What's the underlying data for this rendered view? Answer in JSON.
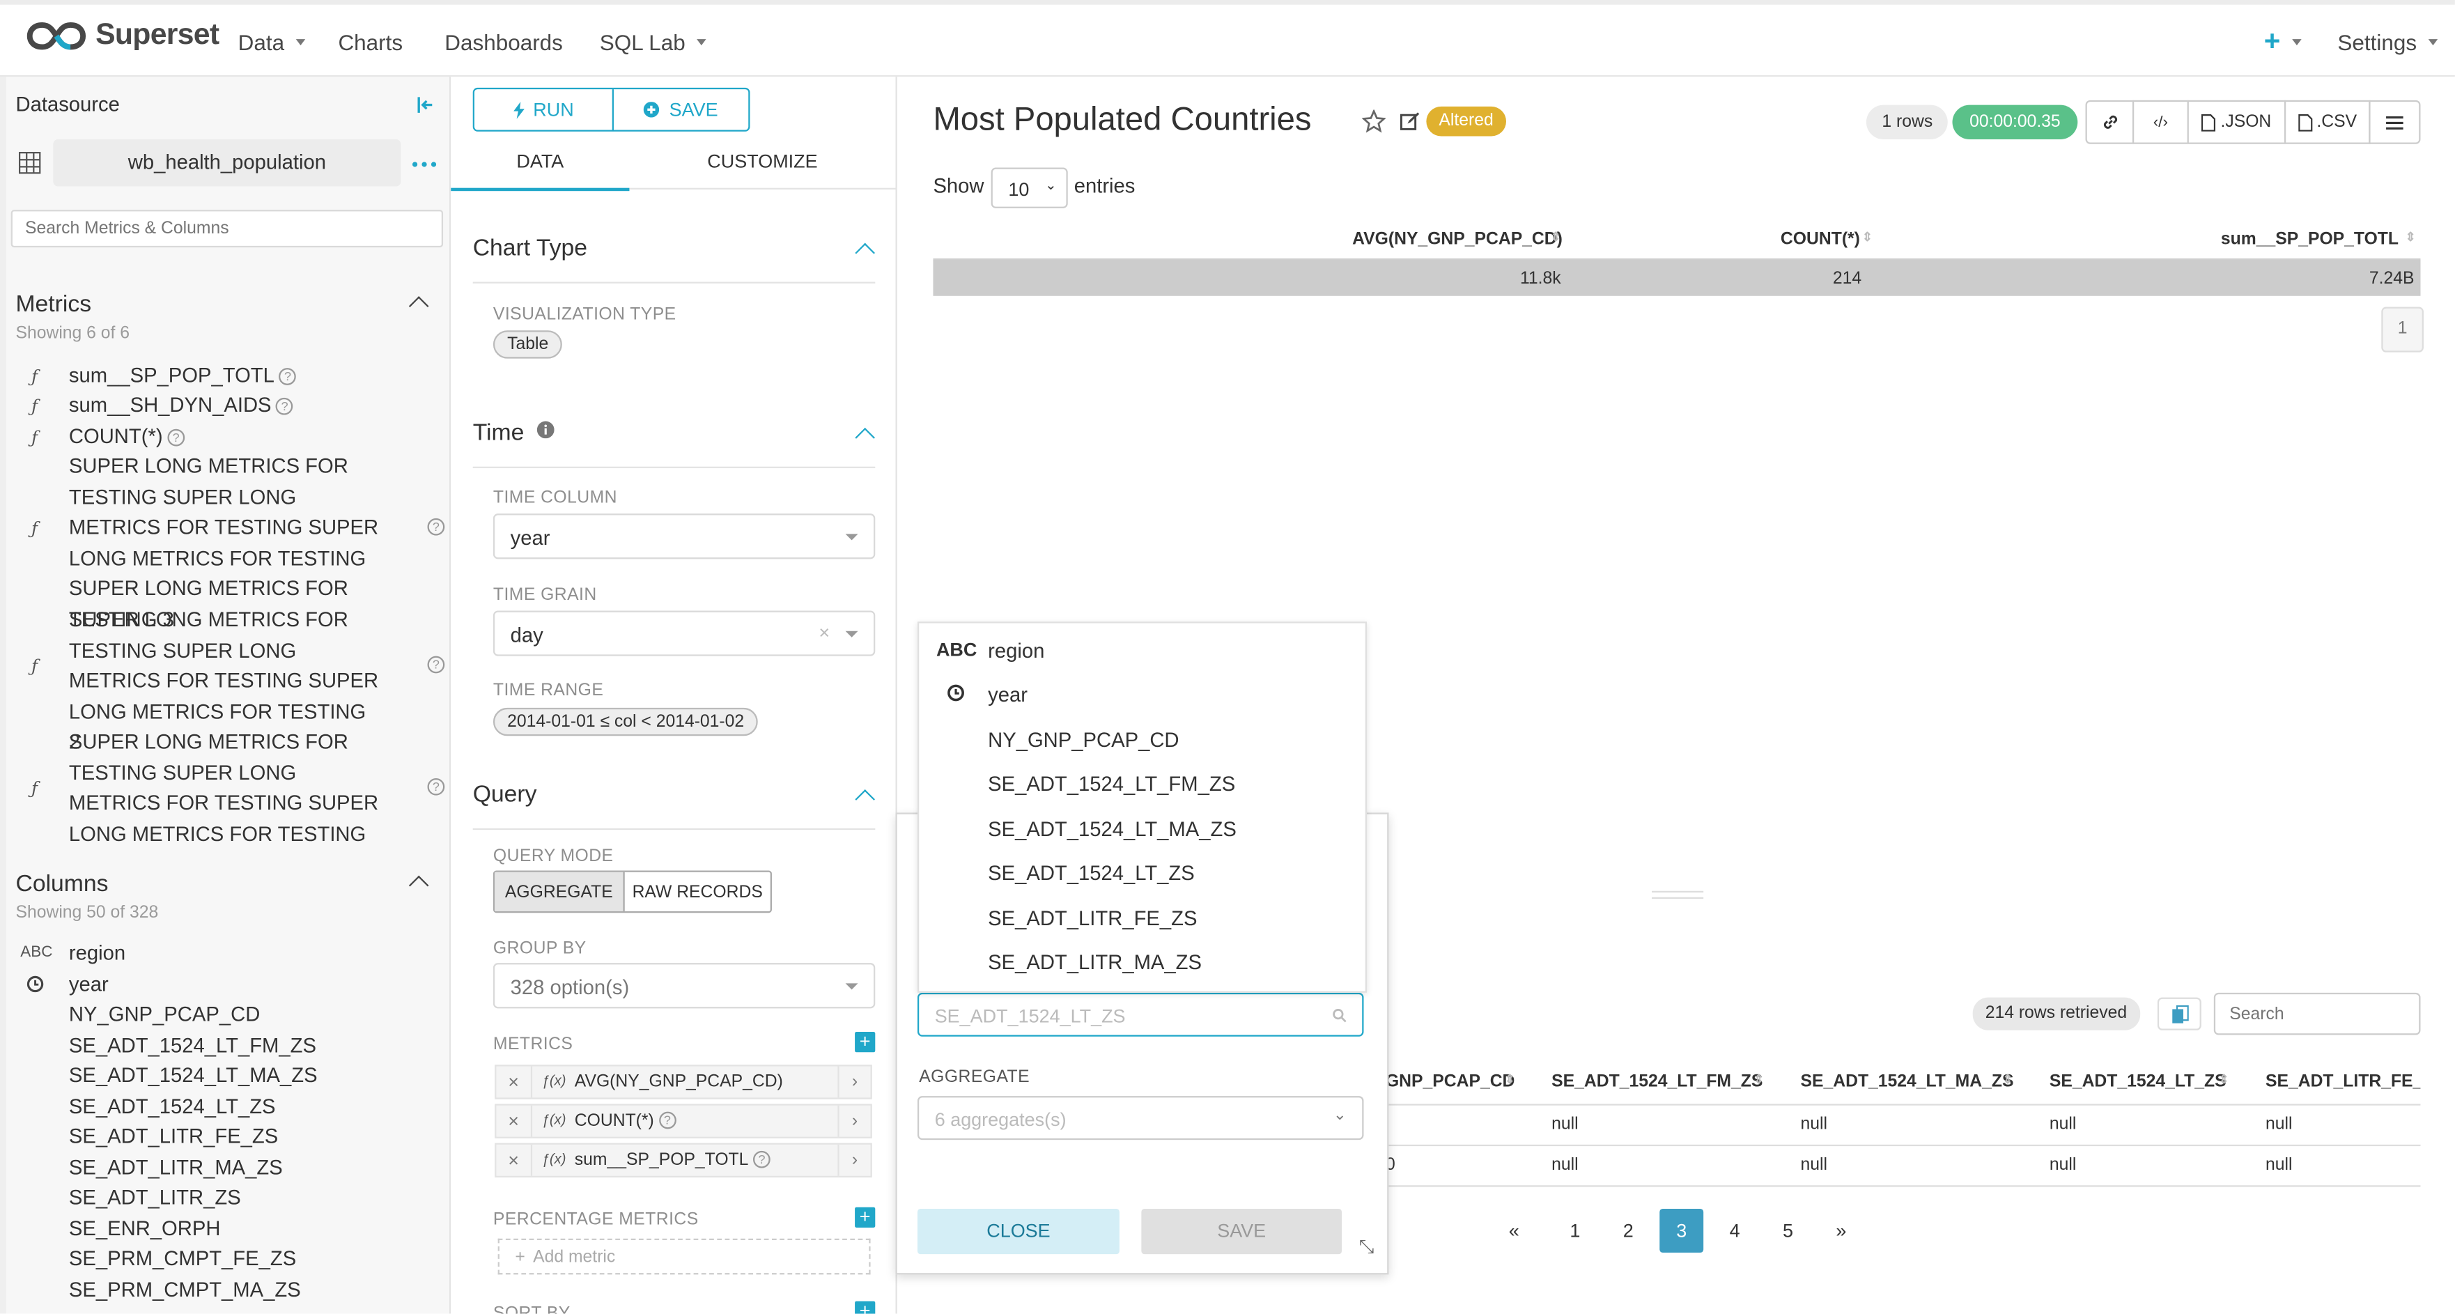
{
  "brand": {
    "name": "Superset"
  },
  "nav": {
    "items": [
      {
        "label": "Data",
        "dropdown": true
      },
      {
        "label": "Charts",
        "dropdown": false
      },
      {
        "label": "Dashboards",
        "dropdown": false
      },
      {
        "label": "SQL Lab",
        "dropdown": true
      }
    ],
    "plus": "+",
    "settings": "Settings"
  },
  "datasource": {
    "title": "Datasource",
    "name": "wb_health_population",
    "search_placeholder": "Search Metrics & Columns",
    "metrics_title": "Metrics",
    "metrics_count": "Showing 6 of 6",
    "metrics": [
      {
        "name": "sum__SP_POP_TOTL",
        "help": true
      },
      {
        "name": "sum__SH_DYN_AIDS",
        "help": true
      },
      {
        "name": "COUNT(*)",
        "help": true
      },
      {
        "name": "SUPER LONG METRICS FOR TESTING SUPER LONG METRICS FOR TESTING SUPER LONG METRICS FOR TESTING SUPER LONG METRICS FOR TESTING 3",
        "help": true
      },
      {
        "name": "SUPER LONG METRICS FOR TESTING SUPER LONG METRICS FOR TESTING SUPER LONG METRICS FOR TESTING 2",
        "help": true
      },
      {
        "name": "SUPER LONG METRICS FOR TESTING SUPER LONG METRICS FOR TESTING SUPER LONG METRICS FOR TESTING",
        "help": true
      }
    ],
    "columns_title": "Columns",
    "columns_count": "Showing 50 of 328",
    "columns": [
      {
        "type": "ABC",
        "name": "region"
      },
      {
        "type": "time",
        "name": "year"
      },
      {
        "type": "",
        "name": "NY_GNP_PCAP_CD"
      },
      {
        "type": "",
        "name": "SE_ADT_1524_LT_FM_ZS"
      },
      {
        "type": "",
        "name": "SE_ADT_1524_LT_MA_ZS"
      },
      {
        "type": "",
        "name": "SE_ADT_1524_LT_ZS"
      },
      {
        "type": "",
        "name": "SE_ADT_LITR_FE_ZS"
      },
      {
        "type": "",
        "name": "SE_ADT_LITR_MA_ZS"
      },
      {
        "type": "",
        "name": "SE_ADT_LITR_ZS"
      },
      {
        "type": "",
        "name": "SE_ENR_ORPH"
      },
      {
        "type": "",
        "name": "SE_PRM_CMPT_FE_ZS"
      },
      {
        "type": "",
        "name": "SE_PRM_CMPT_MA_ZS"
      }
    ]
  },
  "controls": {
    "run": "RUN",
    "save": "SAVE",
    "tabs": [
      {
        "label": "DATA",
        "active": true
      },
      {
        "label": "CUSTOMIZE",
        "active": false
      }
    ],
    "chart_type": {
      "title": "Chart Type",
      "label": "VISUALIZATION TYPE",
      "value": "Table"
    },
    "time": {
      "title": "Time",
      "column_label": "TIME COLUMN",
      "column_value": "year",
      "grain_label": "TIME GRAIN",
      "grain_value": "day",
      "range_label": "TIME RANGE",
      "range_value": "2014-01-01 ≤ col < 2014-01-02"
    },
    "query": {
      "title": "Query",
      "mode_label": "QUERY MODE",
      "mode_options": [
        {
          "label": "AGGREGATE",
          "active": true
        },
        {
          "label": "RAW RECORDS",
          "active": false
        }
      ],
      "group_by_label": "GROUP BY",
      "group_by_value": "328 option(s)",
      "metrics_label": "METRICS",
      "metrics": [
        {
          "prefix": "ƒ(x)",
          "label": "AVG(NY_GNP_PCAP_CD)",
          "help": false
        },
        {
          "prefix": "ƒ(x)",
          "label": "COUNT(*)",
          "help": true
        },
        {
          "prefix": "ƒ(x)",
          "label": "sum__SP_POP_TOTL",
          "help": true
        }
      ],
      "percentage_label": "PERCENTAGE METRICS",
      "add_metric": "Add metric",
      "sort_by_label": "SORT BY"
    }
  },
  "chart": {
    "title": "Most Populated Countries",
    "altered": "Altered",
    "rows_badge": "1 rows",
    "timer": "00:00:00.35",
    "json_label": ".JSON",
    "csv_label": ".CSV",
    "show_label": "Show",
    "entries_value": "10",
    "entries_label": "entries",
    "headers": [
      "AVG(NY_GNP_PCAP_CD)",
      "COUNT(*)",
      "sum__SP_POP_TOTL"
    ],
    "rows": [
      [
        "11.8k",
        "214",
        "7.24B"
      ]
    ],
    "page": "1"
  },
  "results": {
    "rows_retrieved": "214 rows retrieved",
    "search_placeholder": "Search",
    "headers": [
      "GNP_PCAP_CD",
      "SE_ADT_1524_LT_FM_ZS",
      "SE_ADT_1524_LT_MA_ZS",
      "SE_ADT_1524_LT_ZS",
      "SE_ADT_LITR_FE_ZS"
    ],
    "rows": [
      [
        "",
        "null",
        "null",
        "null",
        "null"
      ],
      [
        "0",
        "null",
        "null",
        "null",
        "null"
      ]
    ],
    "pagination": [
      "«",
      "1",
      "2",
      "3",
      "4",
      "5",
      "»"
    ],
    "active_page": "3"
  },
  "popover": {
    "options": [
      {
        "type": "ABC",
        "name": "region"
      },
      {
        "type": "time",
        "name": "year"
      },
      {
        "type": "",
        "name": "NY_GNP_PCAP_CD"
      },
      {
        "type": "",
        "name": "SE_ADT_1524_LT_FM_ZS"
      },
      {
        "type": "",
        "name": "SE_ADT_1524_LT_MA_ZS"
      },
      {
        "type": "",
        "name": "SE_ADT_1524_LT_ZS"
      },
      {
        "type": "",
        "name": "SE_ADT_LITR_FE_ZS"
      },
      {
        "type": "",
        "name": "SE_ADT_LITR_MA_ZS"
      }
    ],
    "column_placeholder": "SE_ADT_1524_LT_ZS",
    "aggregate_label": "AGGREGATE",
    "aggregate_placeholder": "6 aggregates(s)",
    "close": "CLOSE",
    "save": "SAVE"
  },
  "colors": {
    "accent": "#20a7c9",
    "altered": "#e0b12f",
    "timer": "#5ac189",
    "active_page": "#3d9dc2"
  }
}
